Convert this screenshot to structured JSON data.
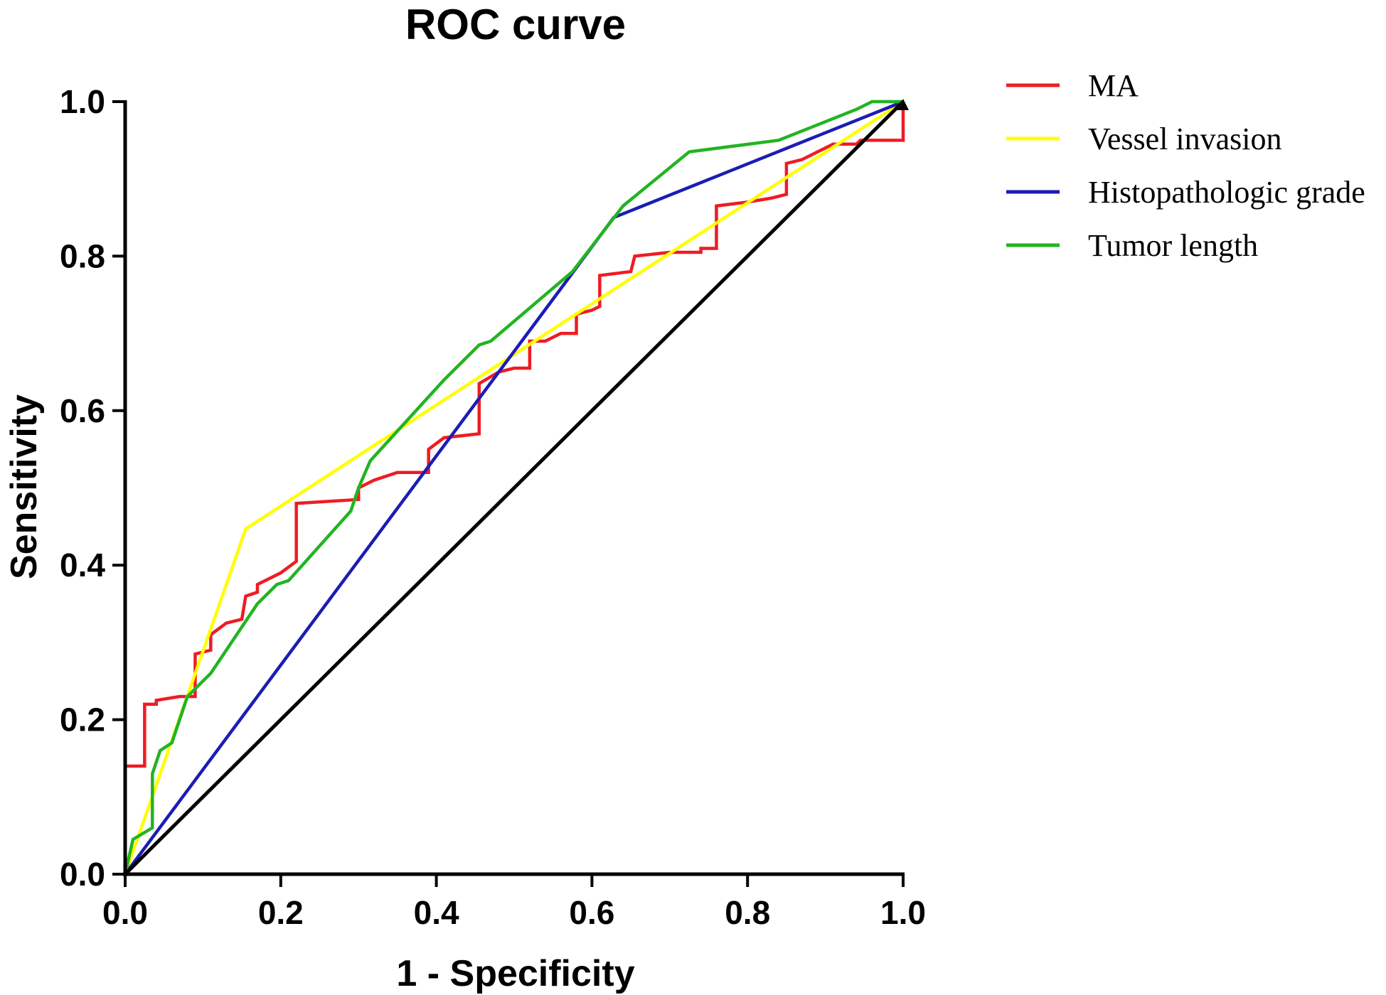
{
  "chart_data": {
    "type": "line",
    "title": "ROC curve",
    "xlabel": "1 - Specificity",
    "ylabel": "Sensitivity",
    "xlim": [
      0,
      1
    ],
    "ylim": [
      0,
      1
    ],
    "x_ticks": [
      "0.0",
      "0.2",
      "0.4",
      "0.6",
      "0.8",
      "1.0"
    ],
    "y_ticks": [
      "0.0",
      "0.2",
      "0.4",
      "0.6",
      "0.8",
      "1.0"
    ],
    "x_tick_values": [
      0,
      0.2,
      0.4,
      0.6,
      0.8,
      1.0
    ],
    "y_tick_values": [
      0,
      0.2,
      0.4,
      0.6,
      0.8,
      1.0
    ],
    "grid": false,
    "legend_position": "top-right, outside plot",
    "series": [
      {
        "name": "MA",
        "color": "#ee1c24",
        "step": true,
        "points": [
          [
            0,
            0
          ],
          [
            0,
            0.14
          ],
          [
            0.025,
            0.14
          ],
          [
            0.025,
            0.22
          ],
          [
            0.04,
            0.22
          ],
          [
            0.04,
            0.225
          ],
          [
            0.07,
            0.23
          ],
          [
            0.09,
            0.23
          ],
          [
            0.09,
            0.285
          ],
          [
            0.11,
            0.29
          ],
          [
            0.11,
            0.31
          ],
          [
            0.13,
            0.325
          ],
          [
            0.15,
            0.33
          ],
          [
            0.155,
            0.36
          ],
          [
            0.17,
            0.365
          ],
          [
            0.17,
            0.375
          ],
          [
            0.2,
            0.39
          ],
          [
            0.22,
            0.405
          ],
          [
            0.22,
            0.48
          ],
          [
            0.3,
            0.485
          ],
          [
            0.3,
            0.5
          ],
          [
            0.32,
            0.51
          ],
          [
            0.35,
            0.52
          ],
          [
            0.39,
            0.52
          ],
          [
            0.39,
            0.55
          ],
          [
            0.41,
            0.565
          ],
          [
            0.455,
            0.57
          ],
          [
            0.455,
            0.635
          ],
          [
            0.48,
            0.65
          ],
          [
            0.5,
            0.655
          ],
          [
            0.52,
            0.655
          ],
          [
            0.52,
            0.69
          ],
          [
            0.54,
            0.69
          ],
          [
            0.56,
            0.7
          ],
          [
            0.58,
            0.7
          ],
          [
            0.58,
            0.725
          ],
          [
            0.6,
            0.73
          ],
          [
            0.61,
            0.735
          ],
          [
            0.61,
            0.775
          ],
          [
            0.65,
            0.78
          ],
          [
            0.655,
            0.8
          ],
          [
            0.7,
            0.805
          ],
          [
            0.74,
            0.805
          ],
          [
            0.74,
            0.81
          ],
          [
            0.76,
            0.81
          ],
          [
            0.76,
            0.865
          ],
          [
            0.8,
            0.87
          ],
          [
            0.83,
            0.875
          ],
          [
            0.85,
            0.88
          ],
          [
            0.85,
            0.92
          ],
          [
            0.87,
            0.925
          ],
          [
            0.89,
            0.935
          ],
          [
            0.9,
            0.94
          ],
          [
            0.91,
            0.945
          ],
          [
            0.94,
            0.945
          ],
          [
            0.945,
            0.95
          ],
          [
            1.0,
            0.95
          ],
          [
            1.0,
            1.0
          ]
        ]
      },
      {
        "name": "Vessel invasion",
        "color": "#ffff00",
        "step": false,
        "points": [
          [
            0,
            0
          ],
          [
            0.155,
            0.447
          ],
          [
            1.0,
            1.0
          ]
        ]
      },
      {
        "name": "Histopathologic grade",
        "color": "#1c1cb4",
        "step": false,
        "points": [
          [
            0,
            0
          ],
          [
            0.628,
            0.85
          ],
          [
            1.0,
            1.0
          ]
        ]
      },
      {
        "name": "Tumor length",
        "color": "#22b422",
        "step": false,
        "points": [
          [
            0,
            0
          ],
          [
            0.01,
            0.045
          ],
          [
            0.035,
            0.06
          ],
          [
            0.035,
            0.13
          ],
          [
            0.045,
            0.16
          ],
          [
            0.06,
            0.17
          ],
          [
            0.08,
            0.23
          ],
          [
            0.11,
            0.26
          ],
          [
            0.17,
            0.35
          ],
          [
            0.195,
            0.375
          ],
          [
            0.21,
            0.38
          ],
          [
            0.29,
            0.47
          ],
          [
            0.3,
            0.5
          ],
          [
            0.315,
            0.535
          ],
          [
            0.41,
            0.64
          ],
          [
            0.455,
            0.685
          ],
          [
            0.47,
            0.69
          ],
          [
            0.575,
            0.78
          ],
          [
            0.64,
            0.865
          ],
          [
            0.725,
            0.935
          ],
          [
            0.84,
            0.95
          ],
          [
            0.94,
            0.99
          ],
          [
            0.96,
            1.0
          ],
          [
            1.0,
            1.0
          ]
        ]
      },
      {
        "name": "Reference line",
        "color": "#000000",
        "step": false,
        "in_legend": false,
        "points": [
          [
            0,
            0
          ],
          [
            1.0,
            1.0
          ]
        ]
      }
    ]
  }
}
